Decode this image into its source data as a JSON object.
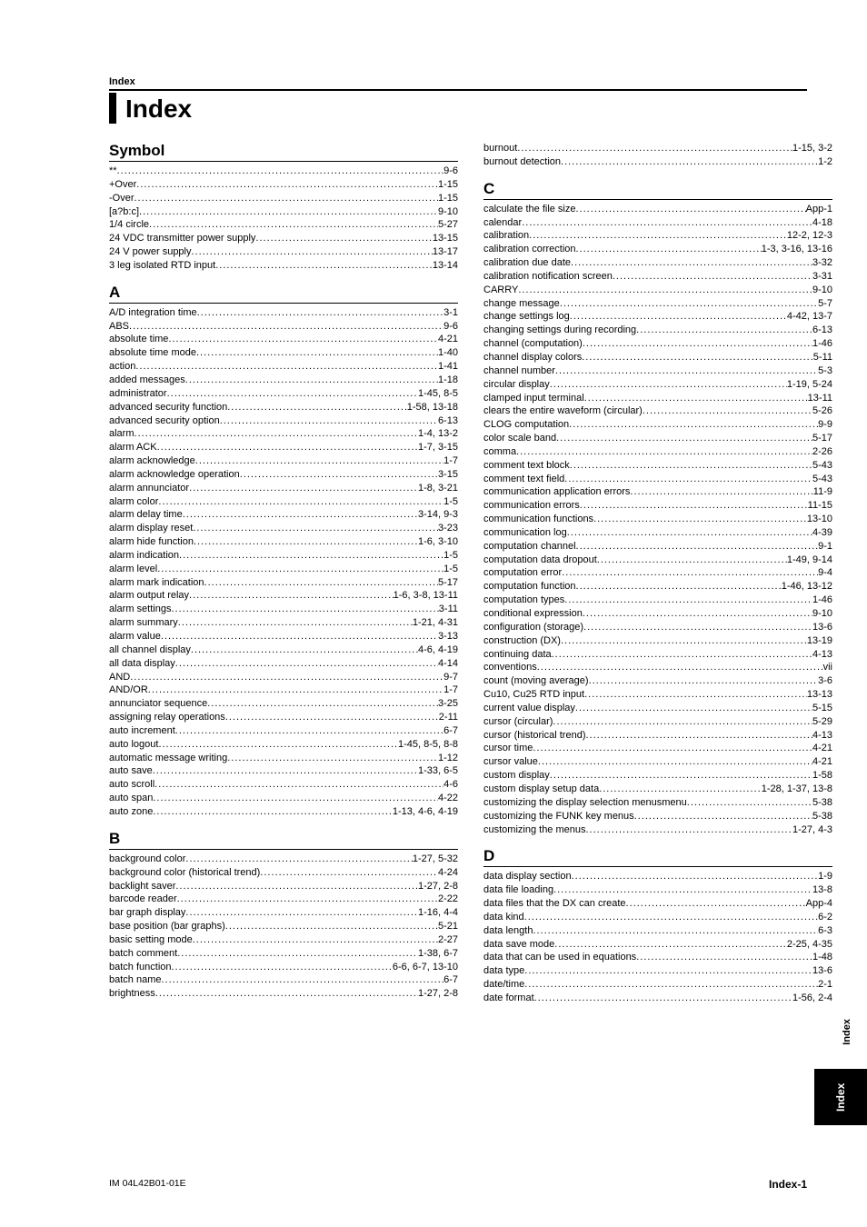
{
  "doc": {
    "running_head": "Index",
    "title": "Index",
    "footer_left": "IM 04L42B01-01E",
    "footer_right": "Index-1",
    "side_tab_text": "Index",
    "side_tab_box": "Index"
  },
  "left": {
    "sections": [
      {
        "head": "Symbol",
        "rows": [
          {
            "t": "**",
            "p": "9-6"
          },
          {
            "t": "+Over",
            "p": "1-15"
          },
          {
            "t": "-Over",
            "p": "1-15"
          },
          {
            "t": "[a?b:c]",
            "p": "9-10"
          },
          {
            "t": "1/4 circle",
            "p": "5-27"
          },
          {
            "t": "24 VDC transmitter power supply",
            "p": "13-15"
          },
          {
            "t": "24 V power supply",
            "p": "13-17"
          },
          {
            "t": "3 leg isolated RTD input",
            "p": "13-14"
          }
        ]
      },
      {
        "head": "A",
        "rows": [
          {
            "t": "A/D integration time",
            "p": "3-1"
          },
          {
            "t": "ABS",
            "p": "9-6"
          },
          {
            "t": "absolute time",
            "p": "4-21"
          },
          {
            "t": "absolute time mode",
            "p": "1-40"
          },
          {
            "t": "action",
            "p": "1-41"
          },
          {
            "t": "added messages",
            "p": "1-18"
          },
          {
            "t": "administrator",
            "p": "1-45,  8-5"
          },
          {
            "t": "advanced security function",
            "p": "1-58,  13-18"
          },
          {
            "t": "advanced security option",
            "p": "6-13"
          },
          {
            "t": "alarm",
            "p": "1-4,  13-2"
          },
          {
            "t": "alarm ACK",
            "p": "1-7,  3-15"
          },
          {
            "t": "alarm acknowledge",
            "p": "1-7"
          },
          {
            "t": "alarm acknowledge operation",
            "p": "3-15"
          },
          {
            "t": "alarm annunciator",
            "p": "1-8,  3-21"
          },
          {
            "t": "alarm color",
            "p": "1-5"
          },
          {
            "t": "alarm delay time",
            "p": "3-14,  9-3"
          },
          {
            "t": "alarm display reset",
            "p": "3-23"
          },
          {
            "t": "alarm hide function",
            "p": "1-6,  3-10"
          },
          {
            "t": "alarm indication",
            "p": "1-5"
          },
          {
            "t": "alarm level",
            "p": "1-5"
          },
          {
            "t": "alarm mark indication",
            "p": "5-17"
          },
          {
            "t": "alarm output relay",
            "p": "1-6,  3-8,  13-11"
          },
          {
            "t": "alarm settings",
            "p": "3-11"
          },
          {
            "t": "alarm summary",
            "p": "1-21,  4-31"
          },
          {
            "t": "alarm value",
            "p": "3-13"
          },
          {
            "t": "all channel display",
            "p": "4-6,  4-19"
          },
          {
            "t": "all data display",
            "p": "4-14"
          },
          {
            "t": "AND",
            "p": "9-7"
          },
          {
            "t": "AND/OR",
            "p": "1-7"
          },
          {
            "t": "annunciator sequence",
            "p": "3-25"
          },
          {
            "t": "assigning relay operations",
            "p": "2-11"
          },
          {
            "t": "auto increment",
            "p": "6-7"
          },
          {
            "t": "auto logout",
            "p": "1-45,  8-5,  8-8"
          },
          {
            "t": "automatic message writing",
            "p": "1-12"
          },
          {
            "t": "auto save",
            "p": "1-33,  6-5"
          },
          {
            "t": "auto scroll",
            "p": "4-6"
          },
          {
            "t": "auto span",
            "p": "4-22"
          },
          {
            "t": "auto zone",
            "p": "1-13,  4-6,  4-19"
          }
        ]
      },
      {
        "head": "B",
        "rows": [
          {
            "t": "background color",
            "p": "1-27,  5-32"
          },
          {
            "t": "background color (historical trend)",
            "p": "4-24"
          },
          {
            "t": "backlight saver",
            "p": "1-27,  2-8"
          },
          {
            "t": "barcode reader",
            "p": "2-22"
          },
          {
            "t": "bar graph display",
            "p": "1-16,  4-4"
          },
          {
            "t": "base position (bar graphs)",
            "p": "5-21"
          },
          {
            "t": "basic setting mode",
            "p": "2-27"
          },
          {
            "t": "batch comment",
            "p": "1-38,  6-7"
          },
          {
            "t": "batch function",
            "p": "6-6,  6-7,  13-10"
          },
          {
            "t": "batch name",
            "p": "6-7"
          },
          {
            "t": "brightness",
            "p": "1-27,  2-8"
          }
        ]
      }
    ]
  },
  "right": {
    "pre_rows": [
      {
        "t": "burnout",
        "p": "1-15,  3-2"
      },
      {
        "t": "burnout detection",
        "p": "1-2"
      }
    ],
    "sections": [
      {
        "head": "C",
        "rows": [
          {
            "t": "calculate the file size",
            "p": "App-1"
          },
          {
            "t": "calendar",
            "p": "4-18"
          },
          {
            "t": "calibration",
            "p": "12-2,  12-3"
          },
          {
            "t": "calibration correction",
            "p": "1-3,  3-16,  13-16"
          },
          {
            "t": "calibration due date",
            "p": "3-32"
          },
          {
            "t": "calibration notification screen",
            "p": "3-31"
          },
          {
            "t": "CARRY",
            "p": "9-10"
          },
          {
            "t": "change message",
            "p": "5-7"
          },
          {
            "t": "change settings log",
            "p": "4-42,  13-7"
          },
          {
            "t": "changing settings during recording",
            "p": "6-13"
          },
          {
            "t": "channel (computation)",
            "p": "1-46"
          },
          {
            "t": "channel display colors",
            "p": "5-11"
          },
          {
            "t": "channel number",
            "p": "5-3"
          },
          {
            "t": "circular display",
            "p": "1-19,  5-24"
          },
          {
            "t": "clamped input terminal",
            "p": "13-11"
          },
          {
            "t": "clears the entire waveform (circular)",
            "p": "5-26"
          },
          {
            "t": "CLOG computation",
            "p": "9-9"
          },
          {
            "t": "color scale band",
            "p": "5-17"
          },
          {
            "t": "comma",
            "p": "2-26"
          },
          {
            "t": "comment text block",
            "p": "5-43"
          },
          {
            "t": "comment text field",
            "p": "5-43"
          },
          {
            "t": "communication application errors",
            "p": "11-9"
          },
          {
            "t": "communication errors",
            "p": "11-15"
          },
          {
            "t": "communication functions",
            "p": "13-10"
          },
          {
            "t": "communication log",
            "p": "4-39"
          },
          {
            "t": "computation channel",
            "p": "9-1"
          },
          {
            "t": "computation data dropout",
            "p": "1-49,  9-14"
          },
          {
            "t": "computation error",
            "p": "9-4"
          },
          {
            "t": "computation function",
            "p": "1-46,  13-12"
          },
          {
            "t": "computation types",
            "p": "1-46"
          },
          {
            "t": "conditional expression",
            "p": "9-10"
          },
          {
            "t": "configuration (storage)",
            "p": "13-6"
          },
          {
            "t": "construction (DX)",
            "p": "13-19"
          },
          {
            "t": "continuing data",
            "p": "4-13"
          },
          {
            "t": "conventions",
            "p": "vii"
          },
          {
            "t": "count (moving average)",
            "p": "3-6"
          },
          {
            "t": "Cu10, Cu25 RTD input",
            "p": "13-13"
          },
          {
            "t": "current value display",
            "p": "5-15"
          },
          {
            "t": "cursor (circular)",
            "p": "5-29"
          },
          {
            "t": "cursor (historical trend)",
            "p": "4-13"
          },
          {
            "t": "cursor time",
            "p": "4-21"
          },
          {
            "t": "cursor value",
            "p": "4-21"
          },
          {
            "t": "custom display",
            "p": "1-58"
          },
          {
            "t": "custom display setup data",
            "p": "1-28,  1-37,  13-8"
          },
          {
            "t": "customizing the display selection menusmenu",
            "p": "5-38"
          },
          {
            "t": "customizing the FUNK key menus",
            "p": "5-38"
          },
          {
            "t": "customizing the menus",
            "p": "1-27,  4-3"
          }
        ]
      },
      {
        "head": "D",
        "rows": [
          {
            "t": "data display section",
            "p": "1-9"
          },
          {
            "t": "data file loading",
            "p": "13-8"
          },
          {
            "t": "data files that the DX can create",
            "p": "App-4"
          },
          {
            "t": "data kind",
            "p": "6-2"
          },
          {
            "t": "data length",
            "p": "6-3"
          },
          {
            "t": "data save mode",
            "p": "2-25,  4-35"
          },
          {
            "t": "data that can be used in equations",
            "p": "1-48"
          },
          {
            "t": "data type",
            "p": "13-6"
          },
          {
            "t": "date/time",
            "p": "2-1"
          },
          {
            "t": "date format",
            "p": "1-56,  2-4"
          }
        ]
      }
    ]
  }
}
